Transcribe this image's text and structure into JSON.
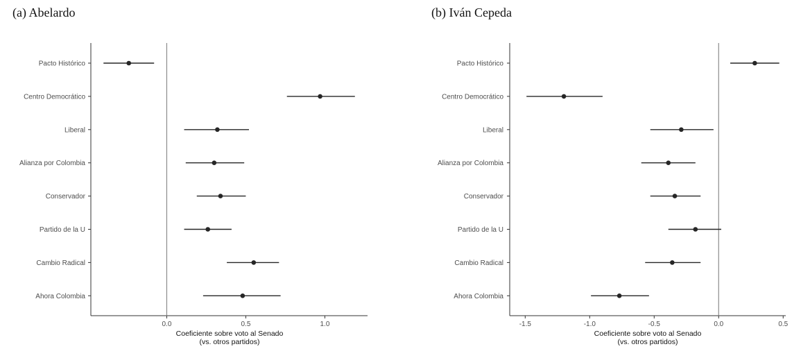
{
  "chart_data": [
    {
      "type": "scatter",
      "title": "(a) Abelardo",
      "xlabel": [
        "Coeficiente sobre voto al Senado",
        "(vs. otros partidos)"
      ],
      "xlim": [
        -0.48,
        1.27
      ],
      "xticks": [
        0.0,
        0.5,
        1.0
      ],
      "xtick_labels": [
        "0.0",
        "0.5",
        "1.0"
      ],
      "reference_line": 0,
      "categories": [
        "Pacto Histórico",
        "Centro Democrático",
        "Liberal",
        "Alianza por Colombia",
        "Conservador",
        "Partido de la U",
        "Cambio Radical",
        "Ahora Colombia"
      ],
      "estimates": [
        -0.24,
        0.97,
        0.32,
        0.3,
        0.34,
        0.26,
        0.55,
        0.48
      ],
      "ci_low": [
        -0.4,
        0.76,
        0.11,
        0.12,
        0.19,
        0.11,
        0.38,
        0.23
      ],
      "ci_high": [
        -0.08,
        1.19,
        0.52,
        0.49,
        0.5,
        0.41,
        0.71,
        0.72
      ],
      "grid": false
    },
    {
      "type": "scatter",
      "title": "(b) Iván Cepeda",
      "xlabel": [
        "Coeficiente sobre voto al Senado",
        "(vs. otros partidos)"
      ],
      "xlim": [
        -1.62,
        0.52
      ],
      "xticks": [
        -1.5,
        -1.0,
        -0.5,
        0.0,
        0.5
      ],
      "xtick_labels": [
        "-1.5",
        "-1.0",
        "-0.5",
        "0.0",
        "0.5"
      ],
      "reference_line": 0,
      "categories": [
        "Pacto Histórico",
        "Centro Democrático",
        "Liberal",
        "Alianza por Colombia",
        "Conservador",
        "Partido de la U",
        "Cambio Radical",
        "Ahora Colombia"
      ],
      "estimates": [
        0.28,
        -1.2,
        -0.29,
        -0.39,
        -0.34,
        -0.18,
        -0.36,
        -0.77
      ],
      "ci_low": [
        0.09,
        -1.49,
        -0.53,
        -0.6,
        -0.53,
        -0.39,
        -0.57,
        -0.99
      ],
      "ci_high": [
        0.47,
        -0.9,
        -0.04,
        -0.18,
        -0.14,
        0.02,
        -0.14,
        -0.54
      ],
      "grid": false
    }
  ]
}
